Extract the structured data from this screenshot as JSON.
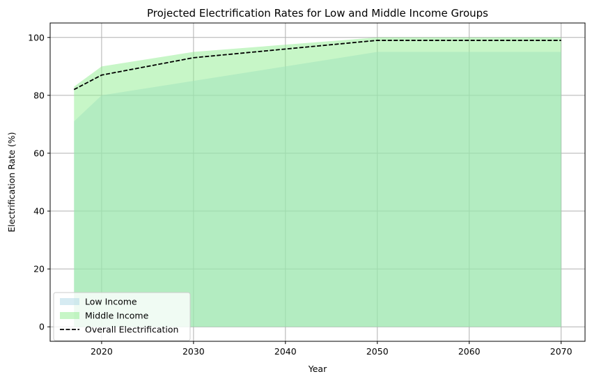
{
  "chart_data": {
    "type": "area",
    "title": "Projected Electrification Rates for Low and Middle Income Groups",
    "xlabel": "Year",
    "ylabel": "Electrification Rate (%)",
    "xlim": [
      2014.4,
      2072.6
    ],
    "ylim": [
      -5,
      105
    ],
    "xticks": [
      2020,
      2030,
      2040,
      2050,
      2060,
      2070
    ],
    "yticks": [
      0,
      20,
      40,
      60,
      80,
      100
    ],
    "grid": true,
    "legend_position": "lower-left",
    "x": [
      2017,
      2020,
      2030,
      2050,
      2070
    ],
    "series": [
      {
        "name": "Low Income",
        "kind": "area",
        "color": "#add8e6",
        "values": [
          71,
          80,
          85,
          95,
          95
        ]
      },
      {
        "name": "Middle Income",
        "kind": "area",
        "color": "#90ee90",
        "values": [
          83,
          90,
          95,
          100,
          100
        ]
      },
      {
        "name": "Overall Electrification",
        "kind": "line",
        "color": "#000000",
        "dash": "dashed",
        "values": [
          82,
          87,
          93,
          99,
          99
        ]
      }
    ]
  }
}
